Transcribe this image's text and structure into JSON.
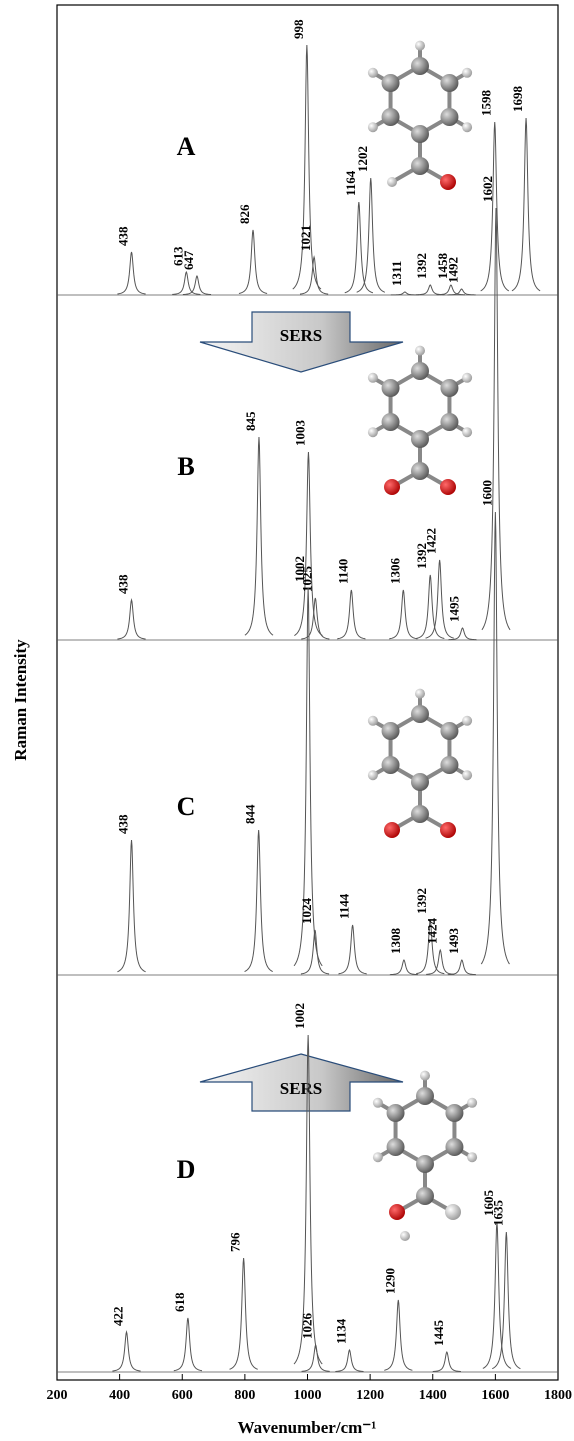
{
  "chart_data": {
    "type": "spectra",
    "x_label": "Wavenumber/cm⁻¹",
    "y_label": "Raman Intensity",
    "xlim": [
      200,
      1800
    ],
    "xticks": [
      200,
      400,
      600,
      800,
      1000,
      1200,
      1400,
      1600,
      1800
    ],
    "color": "#555555",
    "annotations": [
      "SERS",
      "SERS"
    ],
    "series": [
      {
        "name": "A",
        "x": [
          438,
          613,
          647,
          826,
          998,
          1021,
          1164,
          1202,
          1311,
          1392,
          1458,
          1492,
          1598,
          1698
        ],
        "values": [
          43,
          23,
          19,
          65,
          250,
          38,
          93,
          117,
          3,
          10,
          10,
          6,
          173,
          177
        ]
      },
      {
        "name": "B",
        "x": [
          438,
          845,
          1003,
          1025,
          1140,
          1306,
          1392,
          1422,
          1495,
          1602
        ],
        "values": [
          40,
          203,
          188,
          42,
          50,
          50,
          65,
          80,
          12,
          432
        ]
      },
      {
        "name": "C",
        "x": [
          438,
          844,
          1002,
          1024,
          1144,
          1308,
          1392,
          1424,
          1493,
          1600
        ],
        "values": [
          135,
          145,
          387,
          45,
          50,
          15,
          55,
          25,
          15,
          463
        ]
      },
      {
        "name": "D",
        "x": [
          422,
          618,
          796,
          1002,
          1026,
          1134,
          1290,
          1445,
          1605,
          1635
        ],
        "values": [
          40,
          54,
          114,
          337,
          27,
          22,
          72,
          20,
          150,
          140
        ]
      }
    ]
  }
}
